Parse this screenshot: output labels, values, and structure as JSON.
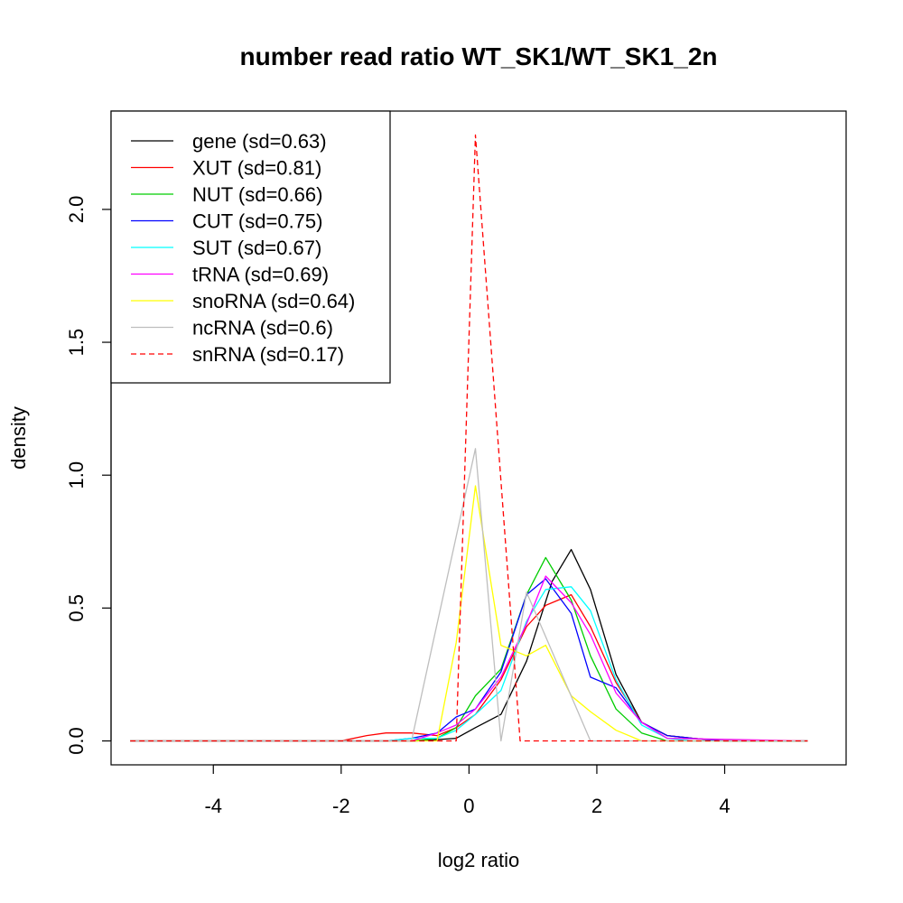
{
  "chart_data": {
    "type": "line",
    "title": "number read ratio WT_SK1/WT_SK1_2n",
    "xlabel": "log2 ratio",
    "ylabel": "density",
    "xlim": [
      -5.6,
      5.9
    ],
    "ylim": [
      -0.09,
      2.37
    ],
    "xticks": [
      -4,
      -2,
      0,
      2,
      4
    ],
    "xtick_labels": [
      "-4",
      "-2",
      "0",
      "2",
      "4"
    ],
    "yticks": [
      0.0,
      0.5,
      1.0,
      1.5,
      2.0
    ],
    "ytick_labels": [
      "0.0",
      "0.5",
      "1.0",
      "1.5",
      "2.0"
    ],
    "grid": false,
    "legend_position": "top-left",
    "series": [
      {
        "name": "gene (sd=0.63)",
        "color": "#000000",
        "dash": false,
        "x": [
          -5.3,
          -0.8,
          -0.2,
          0.1,
          0.5,
          0.9,
          1.3,
          1.6,
          1.9,
          2.3,
          2.7,
          3.1,
          3.5,
          4.0,
          5.3
        ],
        "y": [
          0,
          0,
          0.01,
          0.05,
          0.1,
          0.3,
          0.6,
          0.72,
          0.57,
          0.25,
          0.07,
          0.02,
          0.01,
          0,
          0
        ]
      },
      {
        "name": "XUT (sd=0.81)",
        "color": "#ff0000",
        "dash": false,
        "x": [
          -5.3,
          -2.0,
          -1.6,
          -1.3,
          -0.9,
          -0.5,
          -0.2,
          0.1,
          0.5,
          0.9,
          1.2,
          1.6,
          1.9,
          2.3,
          2.7,
          3.1,
          3.5,
          4.0,
          5.3
        ],
        "y": [
          0,
          0,
          0.02,
          0.03,
          0.03,
          0.02,
          0.05,
          0.1,
          0.23,
          0.43,
          0.51,
          0.55,
          0.43,
          0.22,
          0.07,
          0.02,
          0.01,
          0,
          0
        ]
      },
      {
        "name": "NUT (sd=0.66)",
        "color": "#00cd00",
        "dash": false,
        "x": [
          -5.3,
          -0.9,
          -0.5,
          -0.2,
          0.1,
          0.5,
          0.9,
          1.2,
          1.6,
          1.9,
          2.3,
          2.7,
          3.1,
          5.3
        ],
        "y": [
          0,
          0,
          0.01,
          0.05,
          0.17,
          0.27,
          0.55,
          0.69,
          0.53,
          0.32,
          0.12,
          0.03,
          0,
          0
        ]
      },
      {
        "name": "CUT (sd=0.75)",
        "color": "#0000ff",
        "dash": false,
        "x": [
          -5.3,
          -1.3,
          -0.9,
          -0.5,
          -0.2,
          0.1,
          0.5,
          0.9,
          1.2,
          1.6,
          1.9,
          2.3,
          2.7,
          3.1,
          3.5,
          4.0,
          5.3
        ],
        "y": [
          0,
          0,
          0.01,
          0.03,
          0.09,
          0.12,
          0.26,
          0.55,
          0.61,
          0.48,
          0.24,
          0.2,
          0.07,
          0.02,
          0.01,
          0,
          0
        ]
      },
      {
        "name": "SUT (sd=0.67)",
        "color": "#00ffff",
        "dash": false,
        "x": [
          -5.3,
          -1.3,
          -0.9,
          -0.5,
          -0.2,
          0.1,
          0.5,
          0.9,
          1.2,
          1.6,
          1.9,
          2.3,
          2.7,
          3.1,
          3.5,
          5.3
        ],
        "y": [
          0,
          0,
          0.01,
          0.01,
          0.04,
          0.1,
          0.19,
          0.45,
          0.57,
          0.58,
          0.49,
          0.23,
          0.06,
          0.01,
          0,
          0
        ]
      },
      {
        "name": "tRNA (sd=0.69)",
        "color": "#ff00ff",
        "dash": false,
        "x": [
          -5.3,
          -0.9,
          -0.5,
          -0.2,
          0.1,
          0.5,
          0.9,
          1.2,
          1.6,
          1.9,
          2.3,
          2.7,
          3.1,
          5.3
        ],
        "y": [
          0,
          0,
          0.03,
          0.06,
          0.12,
          0.24,
          0.44,
          0.62,
          0.52,
          0.4,
          0.18,
          0.07,
          0.01,
          0
        ]
      },
      {
        "name": "snoRNA (sd=0.64)",
        "color": "#ffff00",
        "dash": false,
        "x": [
          -5.3,
          -0.5,
          -0.2,
          0.1,
          0.5,
          0.9,
          1.2,
          1.6,
          1.9,
          2.3,
          2.7,
          5.3
        ],
        "y": [
          0,
          0,
          0.37,
          0.96,
          0.36,
          0.32,
          0.36,
          0.17,
          0.11,
          0.04,
          0,
          0
        ]
      },
      {
        "name": "ncRNA (sd=0.6)",
        "color": "#bebebe",
        "dash": false,
        "x": [
          -5.3,
          -0.9,
          0.1,
          0.5,
          0.9,
          1.9,
          5.3
        ],
        "y": [
          0,
          0,
          1.1,
          0,
          0.56,
          0,
          0
        ]
      },
      {
        "name": "snRNA (sd=0.17)",
        "color": "#ff0000",
        "dash": true,
        "x": [
          -5.3,
          -0.2,
          0.1,
          0.8,
          5.3
        ],
        "y": [
          0,
          0,
          2.28,
          0,
          0
        ]
      }
    ]
  }
}
